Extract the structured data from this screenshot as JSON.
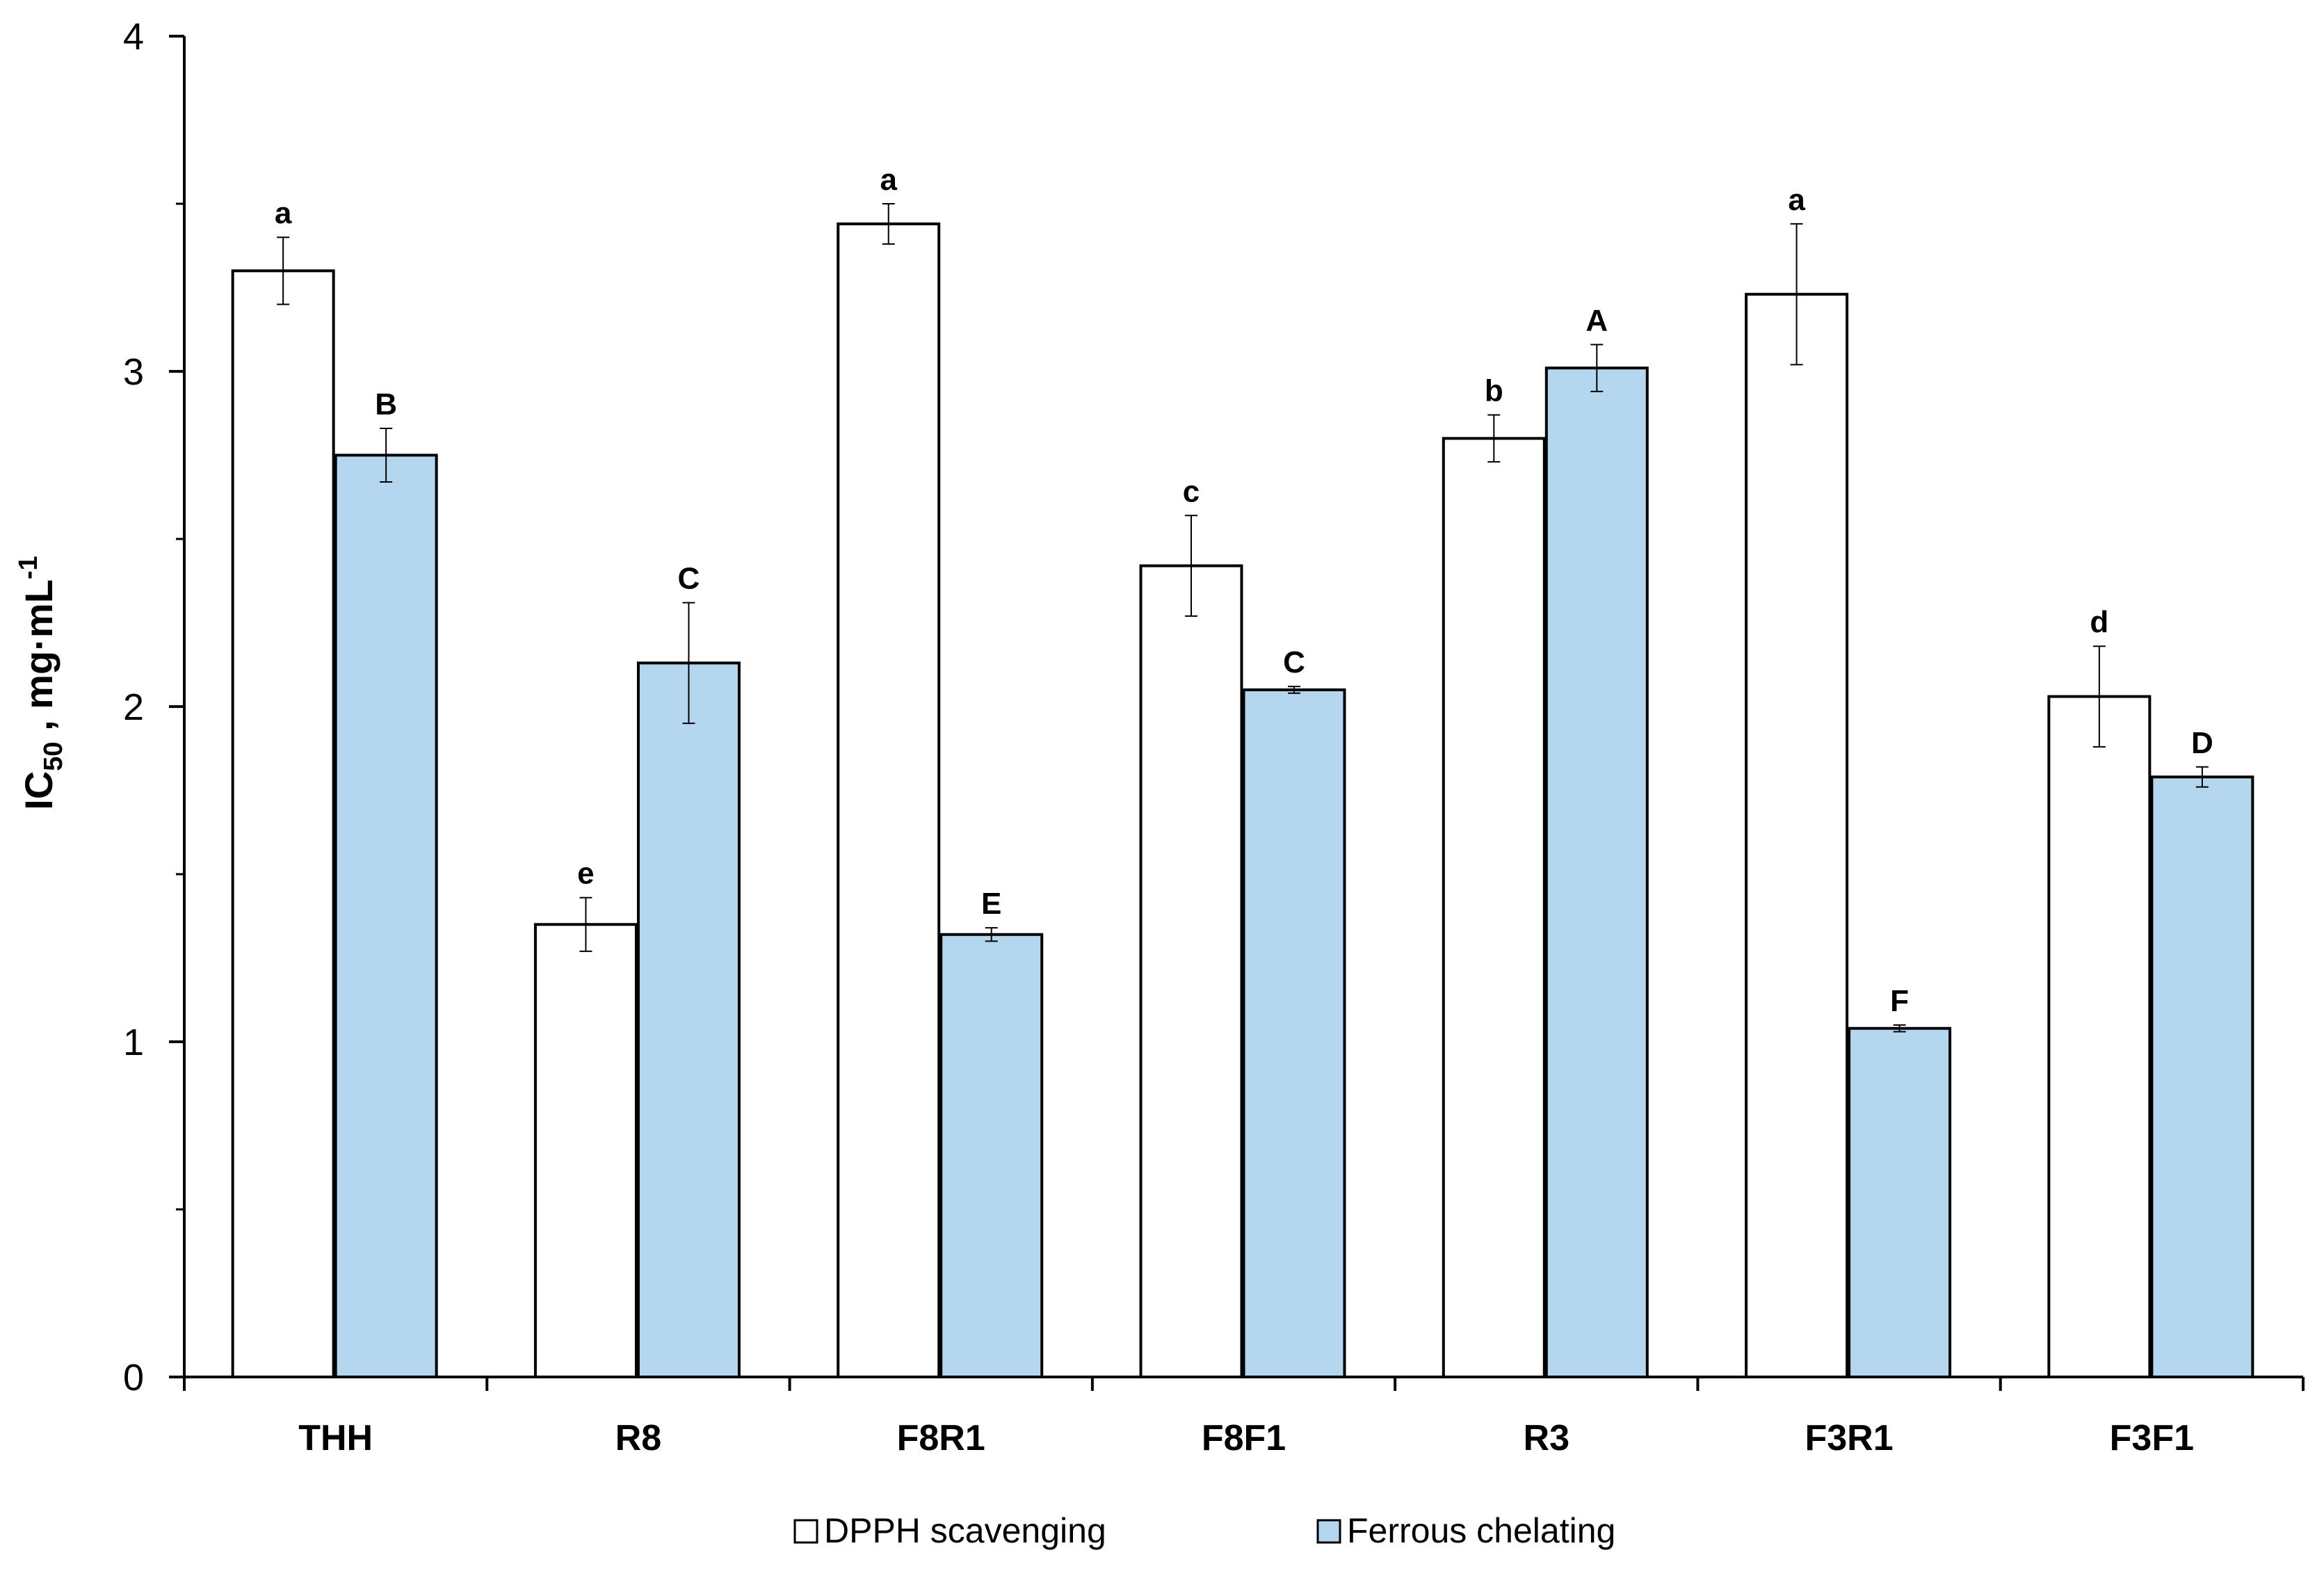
{
  "chart_data": {
    "type": "bar",
    "categories": [
      "THH",
      "R8",
      "F8R1",
      "F8F1",
      "R3",
      "F3R1",
      "F3F1"
    ],
    "series": [
      {
        "name": "DPPH scavenging",
        "color": "#ffffff",
        "values": [
          3.3,
          1.35,
          3.44,
          2.42,
          2.8,
          3.23,
          2.03
        ],
        "errors": [
          0.1,
          0.08,
          0.06,
          0.15,
          0.07,
          0.21,
          0.15
        ],
        "letters": [
          "a",
          "e",
          "a",
          "c",
          "b",
          "a",
          "d"
        ]
      },
      {
        "name": "Ferrous chelating",
        "color": "#b4d6ee",
        "values": [
          2.75,
          2.13,
          1.32,
          2.05,
          3.01,
          1.04,
          1.79
        ],
        "errors": [
          0.08,
          0.18,
          0.02,
          0.01,
          0.07,
          0.01,
          0.03
        ],
        "letters": [
          "B",
          "C",
          "E",
          "C",
          "A",
          "F",
          "D"
        ]
      }
    ],
    "ylim": [
      0,
      4
    ],
    "yticks": [
      0,
      1,
      2,
      3,
      4
    ],
    "ylabel": {
      "main": "IC",
      "sub": "50",
      "rest": " , mg·mL",
      "sup": "-1"
    },
    "xlabel": "",
    "title": "",
    "grid": false,
    "legend": "bottom-center"
  }
}
